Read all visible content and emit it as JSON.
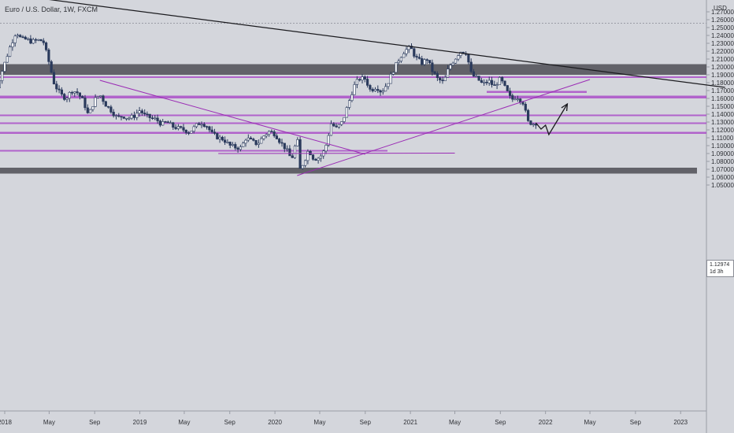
{
  "header": {
    "title": "Euro / U.S. Dollar, 1W, FXCM"
  },
  "price_badge": {
    "price": "1.12974",
    "countdown": "1d 3h"
  },
  "chart_data": {
    "type": "candlestick",
    "instrument": "Euro / U.S. Dollar",
    "interval": "1W",
    "source": "FXCM",
    "y_axis": {
      "unit_label": "USD",
      "ticks": [
        "1.05000",
        "1.06000",
        "1.07000",
        "1.08000",
        "1.09000",
        "1.10000",
        "1.11000",
        "1.12000",
        "1.13000",
        "1.14000",
        "1.15000",
        "1.16000",
        "1.17000",
        "1.18000",
        "1.19000",
        "1.20000",
        "1.21000",
        "1.22000",
        "1.23000",
        "1.24000",
        "1.25000",
        "1.26000",
        "1.27000"
      ]
    },
    "x_axis": {
      "ticks": [
        {
          "label": "2018",
          "date": "2018-01-01"
        },
        {
          "label": "May",
          "date": "2018-05-01"
        },
        {
          "label": "Sep",
          "date": "2018-09-01"
        },
        {
          "label": "2019",
          "date": "2019-01-01"
        },
        {
          "label": "May",
          "date": "2019-05-01"
        },
        {
          "label": "Sep",
          "date": "2019-09-01"
        },
        {
          "label": "2020",
          "date": "2020-01-01"
        },
        {
          "label": "May",
          "date": "2020-05-01"
        },
        {
          "label": "Sep",
          "date": "2020-09-01"
        },
        {
          "label": "2021",
          "date": "2021-01-01"
        },
        {
          "label": "May",
          "date": "2021-05-01"
        },
        {
          "label": "Sep",
          "date": "2021-09-01"
        },
        {
          "label": "2022",
          "date": "2022-01-01"
        },
        {
          "label": "May",
          "date": "2022-05-01"
        },
        {
          "label": "Sep",
          "date": "2022-09-01"
        },
        {
          "label": "2023",
          "date": "2023-01-01"
        }
      ]
    },
    "current_price": 1.12974,
    "dotted_high_line": 1.2555,
    "series": [
      {
        "type": "weekly close path",
        "points": [
          [
            "2017-11-27",
            1.192
          ],
          [
            "2017-12-11",
            1.175
          ],
          [
            "2018-01-01",
            1.205
          ],
          [
            "2018-01-15",
            1.225
          ],
          [
            "2018-02-01",
            1.245
          ],
          [
            "2018-02-15",
            1.235
          ],
          [
            "2018-03-01",
            1.235
          ],
          [
            "2018-03-15",
            1.232
          ],
          [
            "2018-04-01",
            1.234
          ],
          [
            "2018-04-15",
            1.233
          ],
          [
            "2018-05-01",
            1.205
          ],
          [
            "2018-05-15",
            1.178
          ],
          [
            "2018-06-01",
            1.165
          ],
          [
            "2018-06-15",
            1.16
          ],
          [
            "2018-07-01",
            1.17
          ],
          [
            "2018-07-15",
            1.168
          ],
          [
            "2018-08-01",
            1.157
          ],
          [
            "2018-08-15",
            1.138
          ],
          [
            "2018-09-01",
            1.158
          ],
          [
            "2018-09-15",
            1.165
          ],
          [
            "2018-10-01",
            1.152
          ],
          [
            "2018-10-15",
            1.145
          ],
          [
            "2018-11-01",
            1.135
          ],
          [
            "2018-11-15",
            1.138
          ],
          [
            "2018-12-01",
            1.135
          ],
          [
            "2018-12-15",
            1.137
          ],
          [
            "2019-01-01",
            1.145
          ],
          [
            "2019-01-15",
            1.138
          ],
          [
            "2019-02-01",
            1.135
          ],
          [
            "2019-02-15",
            1.133
          ],
          [
            "2019-03-01",
            1.127
          ],
          [
            "2019-03-15",
            1.13
          ],
          [
            "2019-04-01",
            1.124
          ],
          [
            "2019-04-15",
            1.122
          ],
          [
            "2019-05-01",
            1.12
          ],
          [
            "2019-05-15",
            1.117
          ],
          [
            "2019-06-01",
            1.125
          ],
          [
            "2019-06-15",
            1.13
          ],
          [
            "2019-07-01",
            1.125
          ],
          [
            "2019-07-15",
            1.115
          ],
          [
            "2019-08-01",
            1.11
          ],
          [
            "2019-08-15",
            1.108
          ],
          [
            "2019-09-01",
            1.1
          ],
          [
            "2019-09-15",
            1.098
          ],
          [
            "2019-10-01",
            1.097
          ],
          [
            "2019-10-15",
            1.11
          ],
          [
            "2019-11-01",
            1.105
          ],
          [
            "2019-11-15",
            1.102
          ],
          [
            "2019-12-01",
            1.112
          ],
          [
            "2019-12-15",
            1.118
          ],
          [
            "2020-01-01",
            1.115
          ],
          [
            "2020-01-15",
            1.105
          ],
          [
            "2020-02-01",
            1.095
          ],
          [
            "2020-02-15",
            1.082
          ],
          [
            "2020-03-01",
            1.11
          ],
          [
            "2020-03-09",
            1.07
          ],
          [
            "2020-03-20",
            1.08
          ],
          [
            "2020-04-01",
            1.095
          ],
          [
            "2020-04-15",
            1.083
          ],
          [
            "2020-05-01",
            1.085
          ],
          [
            "2020-05-15",
            1.095
          ],
          [
            "2020-06-01",
            1.128
          ],
          [
            "2020-06-15",
            1.122
          ],
          [
            "2020-07-01",
            1.13
          ],
          [
            "2020-07-15",
            1.15
          ],
          [
            "2020-08-01",
            1.175
          ],
          [
            "2020-08-15",
            1.185
          ],
          [
            "2020-09-01",
            1.185
          ],
          [
            "2020-09-15",
            1.17
          ],
          [
            "2020-10-01",
            1.175
          ],
          [
            "2020-10-15",
            1.168
          ],
          [
            "2020-11-01",
            1.18
          ],
          [
            "2020-11-15",
            1.195
          ],
          [
            "2020-12-01",
            1.21
          ],
          [
            "2020-12-15",
            1.22
          ],
          [
            "2021-01-01",
            1.225
          ],
          [
            "2021-01-15",
            1.212
          ],
          [
            "2021-02-01",
            1.205
          ],
          [
            "2021-02-15",
            1.21
          ],
          [
            "2021-03-01",
            1.195
          ],
          [
            "2021-03-15",
            1.185
          ],
          [
            "2021-04-01",
            1.18
          ],
          [
            "2021-04-15",
            1.2
          ],
          [
            "2021-05-01",
            1.21
          ],
          [
            "2021-05-15",
            1.22
          ],
          [
            "2021-06-01",
            1.218
          ],
          [
            "2021-06-15",
            1.19
          ],
          [
            "2021-07-01",
            1.185
          ],
          [
            "2021-07-15",
            1.178
          ],
          [
            "2021-08-01",
            1.182
          ],
          [
            "2021-08-15",
            1.175
          ],
          [
            "2021-09-01",
            1.185
          ],
          [
            "2021-09-15",
            1.172
          ],
          [
            "2021-10-01",
            1.158
          ],
          [
            "2021-10-15",
            1.163
          ],
          [
            "2021-11-01",
            1.155
          ],
          [
            "2021-11-15",
            1.13
          ],
          [
            "2021-11-29",
            1.128
          ],
          [
            "2021-12-06",
            1.129
          ]
        ]
      }
    ],
    "zones": [
      {
        "name": "upper grey zone",
        "low": 1.19,
        "high": 1.2035,
        "color": "#4d4d55"
      },
      {
        "name": "lower grey zone",
        "low": 1.0645,
        "high": 1.072,
        "color": "#4d4d55"
      },
      {
        "name": "magenta line 1.1870",
        "low": 1.186,
        "high": 1.188,
        "color": "#a63cc6"
      },
      {
        "name": "magenta line 1.1610",
        "low": 1.16,
        "high": 1.1635,
        "color": "#a63cc6"
      },
      {
        "name": "magenta line 1.1380",
        "low": 1.1375,
        "high": 1.1395,
        "color": "#a63cc6"
      },
      {
        "name": "magenta line 1.1280",
        "low": 1.1275,
        "high": 1.1295,
        "color": "#a63cc6"
      },
      {
        "name": "magenta line 1.1160",
        "low": 1.115,
        "high": 1.1175,
        "color": "#a63cc6"
      },
      {
        "name": "magenta line 1.0930",
        "low": 1.0925,
        "high": 1.0945,
        "color": "#a63cc6"
      },
      {
        "name": "magenta box 1.1680",
        "low": 1.167,
        "high": 1.1695,
        "color": "#a63cc6"
      }
    ],
    "trendlines": [
      {
        "name": "black descending",
        "x1": "2018-02-01",
        "y1": 1.291,
        "x2": "2023-05-01",
        "y2": 1.174,
        "color": "#1b1b1f"
      },
      {
        "name": "magenta descending",
        "x1": "2018-09-15",
        "y1": 1.183,
        "x2": "2020-09-01",
        "y2": 1.089,
        "color": "#9b2cb5"
      },
      {
        "name": "magenta ascending",
        "x1": "2020-03-01",
        "y1": 1.062,
        "x2": "2022-05-01",
        "y2": 1.184,
        "color": "#9b2cb5"
      },
      {
        "name": "magenta horizontal",
        "x1": "2019-08-01",
        "y1": 1.09,
        "x2": "2021-05-01",
        "y2": 1.0905,
        "color": "#9b2cb5"
      }
    ],
    "projection": {
      "points": [
        [
          "2021-12-06",
          1.129
        ],
        [
          "2021-12-20",
          1.121
        ],
        [
          "2022-01-01",
          1.126
        ],
        [
          "2022-01-10",
          1.114
        ],
        [
          "2022-03-01",
          1.153
        ]
      ],
      "color": "#1b1b1f"
    }
  }
}
